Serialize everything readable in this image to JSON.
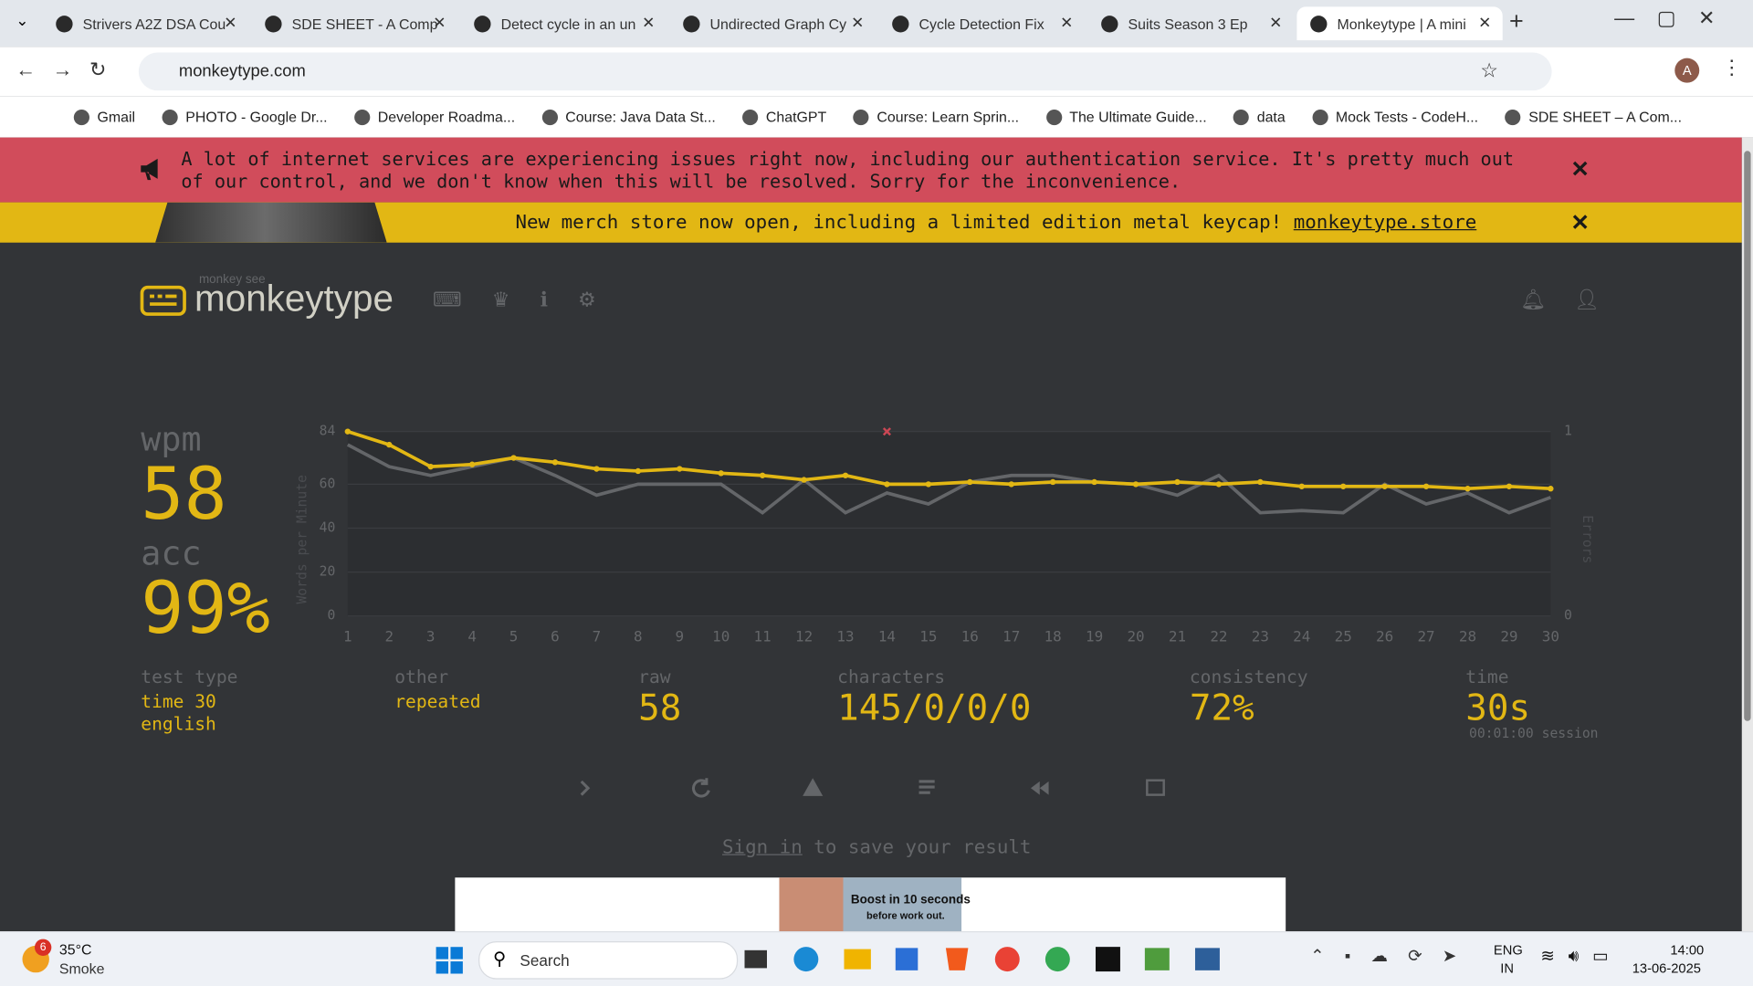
{
  "browser": {
    "tabs": [
      "Strivers A2Z DSA Cou",
      "SDE SHEET - A Comp",
      "Detect cycle in an un",
      "Undirected Graph Cy",
      "Cycle Detection Fix",
      "Suits Season 3 Ep",
      "Monkeytype | A mini"
    ],
    "active_tab": 6,
    "url": "monkeytype.com",
    "profile": "A",
    "bookmarks": [
      "Gmail",
      "PHOTO - Google Dr...",
      "Developer Roadma...",
      "Course: Java Data St...",
      "ChatGPT",
      "Course: Learn Sprin...",
      "The Ultimate Guide...",
      "data",
      "Mock Tests - CodeH...",
      "SDE SHEET – A Com..."
    ]
  },
  "banners": {
    "alert": "A lot of internet services are experiencing issues right now, including our authentication service. It's pretty much out of our control, and we don't know when this will be resolved. Sorry for the inconvenience.",
    "merch": "New merch store now open, including a limited edition metal keycap!",
    "merch_link": "monkeytype.store"
  },
  "app": {
    "logo_top": "monkey see",
    "logo": "monkeytype"
  },
  "result": {
    "wpm_label": "wpm",
    "wpm": "58",
    "acc_label": "acc",
    "acc": "99%",
    "stats": [
      {
        "label": "test type",
        "values": [
          "time 30",
          "english"
        ]
      },
      {
        "label": "other",
        "values": [
          "repeated"
        ]
      },
      {
        "label": "raw",
        "values": [
          "58"
        ]
      },
      {
        "label": "characters",
        "values": [
          "145/0/0/0"
        ]
      },
      {
        "label": "consistency",
        "values": [
          "72%"
        ]
      },
      {
        "label": "time",
        "values": [
          "30s"
        ]
      }
    ],
    "session": "00:01:00 session",
    "sign_in": "Sign in",
    "sign_in_rest": " to save your result"
  },
  "chart_data": {
    "type": "line",
    "ylabel": "Words per Minute",
    "y2label": "Errors",
    "x": [
      1,
      2,
      3,
      4,
      5,
      6,
      7,
      8,
      9,
      10,
      11,
      12,
      13,
      14,
      15,
      16,
      17,
      18,
      19,
      20,
      21,
      22,
      23,
      24,
      25,
      26,
      27,
      28,
      29,
      30
    ],
    "xlim": [
      1,
      30
    ],
    "xticks": [
      1,
      2,
      3,
      4,
      5,
      6,
      7,
      8,
      9,
      10,
      11,
      12,
      13,
      14,
      15,
      16,
      17,
      18,
      19,
      20,
      21,
      22,
      23,
      24,
      25,
      26,
      27,
      28,
      29,
      30
    ],
    "ylim": [
      0,
      84
    ],
    "yticks": [
      0,
      20,
      40,
      60,
      84
    ],
    "y2lim": [
      0,
      1
    ],
    "y2ticks": [
      0,
      1
    ],
    "grid": true,
    "series": [
      {
        "color": "#646669",
        "values": [
          78,
          68,
          64,
          68,
          72,
          64,
          55,
          60,
          60,
          60,
          47,
          62,
          47,
          56,
          51,
          61,
          64,
          64,
          61,
          60,
          55,
          64,
          47,
          48,
          47,
          60,
          51,
          56,
          47,
          54
        ]
      },
      {
        "color": "#e2b714",
        "values": [
          84,
          78,
          68,
          69,
          72,
          70,
          67,
          66,
          67,
          65,
          64,
          62,
          64,
          60,
          60,
          61,
          60,
          61,
          61,
          60,
          61,
          60,
          61,
          59,
          59,
          59,
          59,
          58,
          59,
          58
        ]
      },
      {
        "color": "#ca4754",
        "axis": "y2",
        "values": [
          null,
          null,
          null,
          null,
          null,
          null,
          null,
          null,
          null,
          null,
          null,
          null,
          null,
          1,
          null,
          null,
          null,
          null,
          null,
          null,
          null,
          null,
          null,
          null,
          null,
          null,
          null,
          null,
          null,
          null
        ]
      }
    ]
  },
  "ad": {
    "headline": "Boost in 10 seconds",
    "sub": "before work out."
  },
  "taskbar": {
    "weather_badge": "6",
    "temp": "35°C",
    "condition": "Smoke",
    "search": "Search",
    "lang": "ENG",
    "region": "IN",
    "time": "14:00",
    "date": "13-06-2025"
  }
}
